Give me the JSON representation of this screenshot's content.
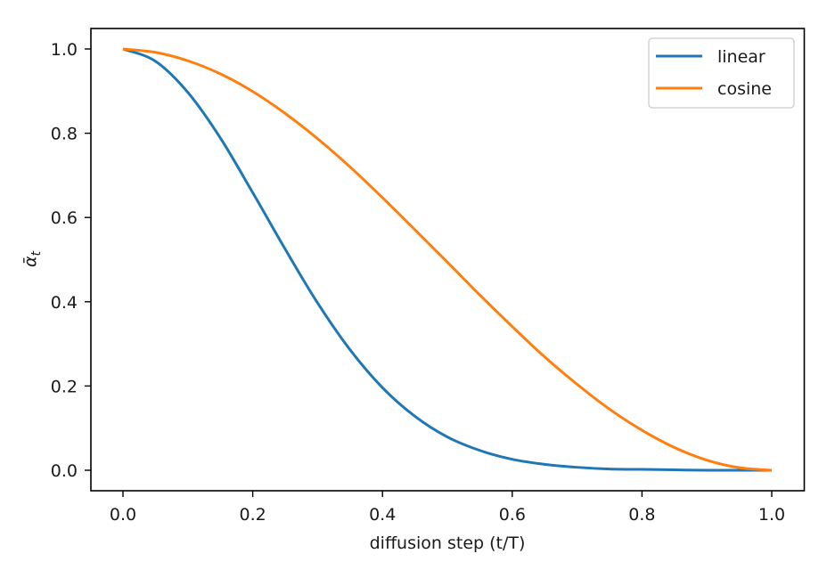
{
  "chart_data": {
    "type": "line",
    "title": "",
    "xlabel": "diffusion step (t/T)",
    "ylabel": "ᾱ",
    "ylabel_subscript": "t",
    "xlim": [
      -0.05,
      1.05
    ],
    "ylim": [
      -0.05,
      1.05
    ],
    "grid": false,
    "legend_position": "upper right",
    "xticks": [
      0.0,
      0.2,
      0.4,
      0.6,
      0.8,
      1.0
    ],
    "xtick_labels": [
      "0.0",
      "0.2",
      "0.4",
      "0.6",
      "0.8",
      "1.0"
    ],
    "yticks": [
      0.0,
      0.2,
      0.4,
      0.6,
      0.8,
      1.0
    ],
    "ytick_labels": [
      "0.0",
      "0.2",
      "0.4",
      "0.6",
      "0.8",
      "1.0"
    ],
    "x": [
      0.0,
      0.05,
      0.1,
      0.15,
      0.2,
      0.25,
      0.3,
      0.35,
      0.4,
      0.45,
      0.5,
      0.55,
      0.6,
      0.65,
      0.7,
      0.75,
      0.8,
      0.85,
      0.9,
      0.95,
      1.0
    ],
    "series": [
      {
        "name": "linear",
        "color": "#1f77b4",
        "values": [
          1.0,
          0.971,
          0.897,
          0.789,
          0.659,
          0.525,
          0.397,
          0.286,
          0.196,
          0.128,
          0.079,
          0.047,
          0.026,
          0.014,
          0.007,
          0.003,
          0.002,
          0.001,
          0.0,
          0.0,
          0.0
        ]
      },
      {
        "name": "cosine",
        "color": "#ff7f0e",
        "values": [
          1.0,
          0.992,
          0.972,
          0.941,
          0.899,
          0.847,
          0.787,
          0.72,
          0.647,
          0.571,
          0.494,
          0.416,
          0.341,
          0.269,
          0.204,
          0.145,
          0.095,
          0.054,
          0.024,
          0.006,
          0.0
        ]
      }
    ]
  },
  "legend": {
    "items": [
      {
        "label": "linear",
        "color": "#1f77b4"
      },
      {
        "label": "cosine",
        "color": "#ff7f0e"
      }
    ]
  }
}
